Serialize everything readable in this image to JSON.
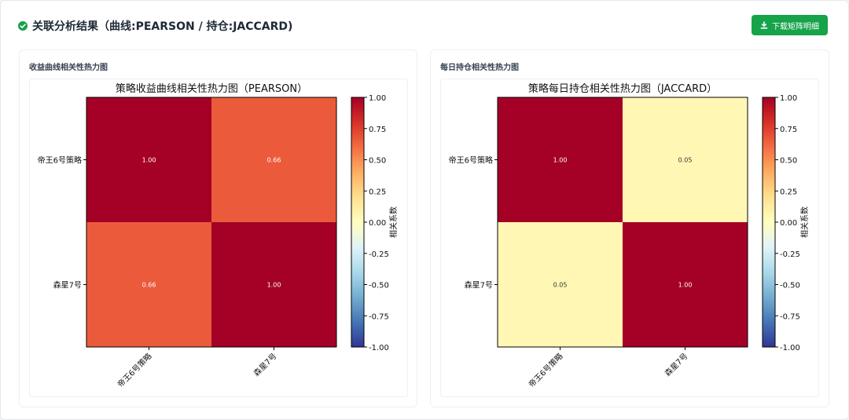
{
  "header": {
    "title": "关联分析结果（曲线:PEARSON / 持仓:JACCARD)",
    "download_label": "下载矩阵明细",
    "accent_color": "#16a34a"
  },
  "panels": [
    {
      "card_title": "收益曲线相关性热力图",
      "chart_data": {
        "type": "heatmap",
        "title": "策略收益曲线相关性热力图（PEARSON）",
        "rows": [
          "帝王6号策略",
          "森星7号"
        ],
        "columns": [
          "帝王6号策略",
          "森星7号"
        ],
        "values": [
          [
            1.0,
            0.66
          ],
          [
            0.66,
            1.0
          ]
        ],
        "colorbar_label": "相关系数",
        "colorbar_ticks": [
          "1.00",
          "0.75",
          "0.50",
          "0.25",
          "0.00",
          "-0.25",
          "-0.50",
          "-0.75",
          "-1.00"
        ],
        "colormap": "RdYlBu_r",
        "vmin": -1,
        "vmax": 1
      }
    },
    {
      "card_title": "每日持仓相关性热力图",
      "chart_data": {
        "type": "heatmap",
        "title": "策略每日持仓相关性热力图（JACCARD）",
        "rows": [
          "帝王6号策略",
          "森星7号"
        ],
        "columns": [
          "帝王6号策略",
          "森星7号"
        ],
        "values": [
          [
            1.0,
            0.05
          ],
          [
            0.05,
            1.0
          ]
        ],
        "colorbar_label": "相关系数",
        "colorbar_ticks": [
          "1.00",
          "0.75",
          "0.50",
          "0.25",
          "0.00",
          "-0.25",
          "-0.50",
          "-0.75",
          "-1.00"
        ],
        "colormap": "RdYlBu_r",
        "vmin": -1,
        "vmax": 1
      }
    }
  ]
}
